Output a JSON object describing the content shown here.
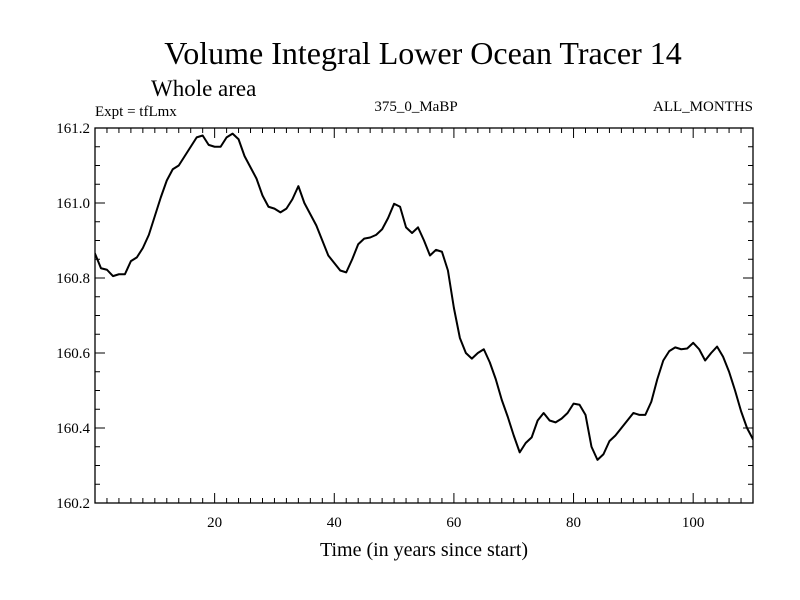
{
  "chart_data": {
    "type": "line",
    "title": "Volume Integral Lower Ocean Tracer 14",
    "subtitle": "Whole area",
    "left_label": "Expt = tfLmx",
    "center_label": "375_0_MaBP",
    "right_label": "ALL_MONTHS",
    "xlabel": "Time (in years since start)",
    "ylabel": "",
    "xlim": [
      0,
      110
    ],
    "ylim": [
      160.2,
      161.2
    ],
    "xticks": [
      20,
      40,
      60,
      80,
      100
    ],
    "xtick_labels": [
      "20",
      "40",
      "60",
      "80",
      "100"
    ],
    "yticks": [
      160.2,
      160.4,
      160.6,
      160.8,
      161.0,
      161.2
    ],
    "ytick_labels": [
      "160.2",
      "160.4",
      "160.6",
      "160.8",
      "161.0",
      "161.2"
    ],
    "grid": false,
    "series": [
      {
        "name": "Volume Integral Lower Ocean Tracer 14",
        "color": "#000000",
        "x": [
          0,
          1,
          2,
          3,
          4,
          5,
          6,
          7,
          8,
          9,
          10,
          11,
          12,
          13,
          14,
          15,
          16,
          17,
          18,
          19,
          20,
          21,
          22,
          23,
          24,
          25,
          26,
          27,
          28,
          29,
          30,
          31,
          32,
          33,
          34,
          35,
          36,
          37,
          38,
          39,
          40,
          41,
          42,
          43,
          44,
          45,
          46,
          47,
          48,
          49,
          50,
          51,
          52,
          53,
          54,
          55,
          56,
          57,
          58,
          59,
          60,
          61,
          62,
          63,
          64,
          65,
          66,
          67,
          68,
          69,
          70,
          71,
          72,
          73,
          74,
          75,
          76,
          77,
          78,
          79,
          80,
          81,
          82,
          83,
          84,
          85,
          86,
          87,
          88,
          89,
          90,
          91,
          92,
          93,
          94,
          95,
          96,
          97,
          98,
          99,
          100,
          101,
          102,
          103,
          104,
          105,
          106,
          107,
          108,
          109,
          110
        ],
        "values": [
          160.865,
          160.826,
          160.822,
          160.805,
          160.81,
          160.81,
          160.845,
          160.855,
          160.88,
          160.915,
          160.965,
          161.015,
          161.06,
          161.09,
          161.1,
          161.125,
          161.15,
          161.175,
          161.18,
          161.155,
          161.15,
          161.15,
          161.175,
          161.185,
          161.17,
          161.125,
          161.095,
          161.065,
          161.02,
          160.99,
          160.985,
          160.975,
          160.985,
          161.01,
          161.045,
          161.0,
          160.97,
          160.94,
          160.9,
          160.86,
          160.84,
          160.82,
          160.815,
          160.85,
          160.89,
          160.905,
          160.908,
          160.915,
          160.93,
          160.96,
          160.998,
          160.99,
          160.935,
          160.92,
          160.935,
          160.9,
          160.86,
          160.875,
          160.87,
          160.82,
          160.72,
          160.64,
          160.6,
          160.585,
          160.6,
          160.61,
          160.575,
          160.53,
          160.475,
          160.43,
          160.38,
          160.335,
          160.36,
          160.375,
          160.42,
          160.44,
          160.42,
          160.415,
          160.425,
          160.44,
          160.465,
          160.462,
          160.435,
          160.35,
          160.315,
          160.33,
          160.365,
          160.38,
          160.4,
          160.42,
          160.44,
          160.435,
          160.435,
          160.47,
          160.53,
          160.58,
          160.605,
          160.615,
          160.61,
          160.612,
          160.627,
          160.61,
          160.58,
          160.6,
          160.617,
          160.59,
          160.55,
          160.5,
          160.445,
          160.4,
          160.37
        ]
      }
    ]
  }
}
